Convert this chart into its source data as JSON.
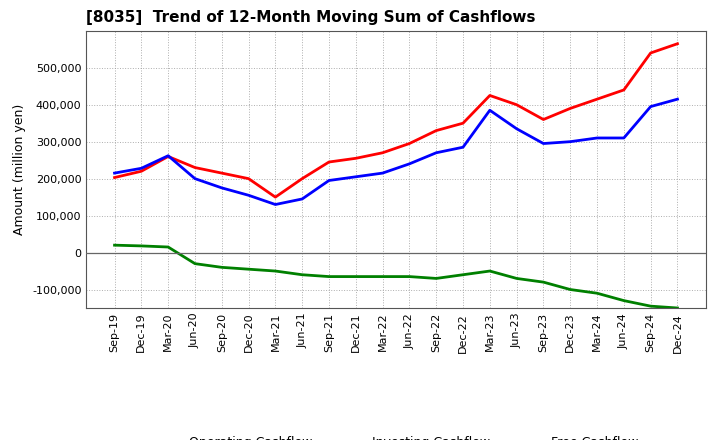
{
  "title": "[8035]  Trend of 12-Month Moving Sum of Cashflows",
  "ylabel": "Amount (million yen)",
  "background_color": "#ffffff",
  "grid_color": "#999999",
  "x_labels": [
    "Sep-19",
    "Dec-19",
    "Mar-20",
    "Jun-20",
    "Sep-20",
    "Dec-20",
    "Mar-21",
    "Jun-21",
    "Sep-21",
    "Dec-21",
    "Mar-22",
    "Jun-22",
    "Sep-22",
    "Dec-22",
    "Mar-23",
    "Jun-23",
    "Sep-23",
    "Dec-23",
    "Mar-24",
    "Jun-24",
    "Sep-24",
    "Dec-24"
  ],
  "operating_cashflow": [
    203000,
    220000,
    260000,
    230000,
    215000,
    200000,
    150000,
    200000,
    245000,
    255000,
    270000,
    295000,
    330000,
    350000,
    425000,
    400000,
    360000,
    390000,
    415000,
    440000,
    540000,
    565000
  ],
  "investing_cashflow": [
    20000,
    18000,
    15000,
    -30000,
    -40000,
    -45000,
    -50000,
    -60000,
    -65000,
    -65000,
    -65000,
    -65000,
    -70000,
    -60000,
    -50000,
    -70000,
    -80000,
    -100000,
    -110000,
    -130000,
    -145000,
    -150000
  ],
  "free_cashflow": [
    215000,
    228000,
    262000,
    200000,
    175000,
    155000,
    130000,
    145000,
    195000,
    205000,
    215000,
    240000,
    270000,
    285000,
    385000,
    335000,
    295000,
    300000,
    310000,
    310000,
    395000,
    415000
  ],
  "op_color": "#ff0000",
  "inv_color": "#008000",
  "free_color": "#0000ff",
  "ylim_min": -150000,
  "ylim_max": 600000,
  "yticks": [
    -100000,
    0,
    100000,
    200000,
    300000,
    400000,
    500000
  ],
  "line_width": 2.0,
  "title_fontsize": 11,
  "legend_fontsize": 9,
  "tick_fontsize": 8,
  "ylabel_fontsize": 9
}
